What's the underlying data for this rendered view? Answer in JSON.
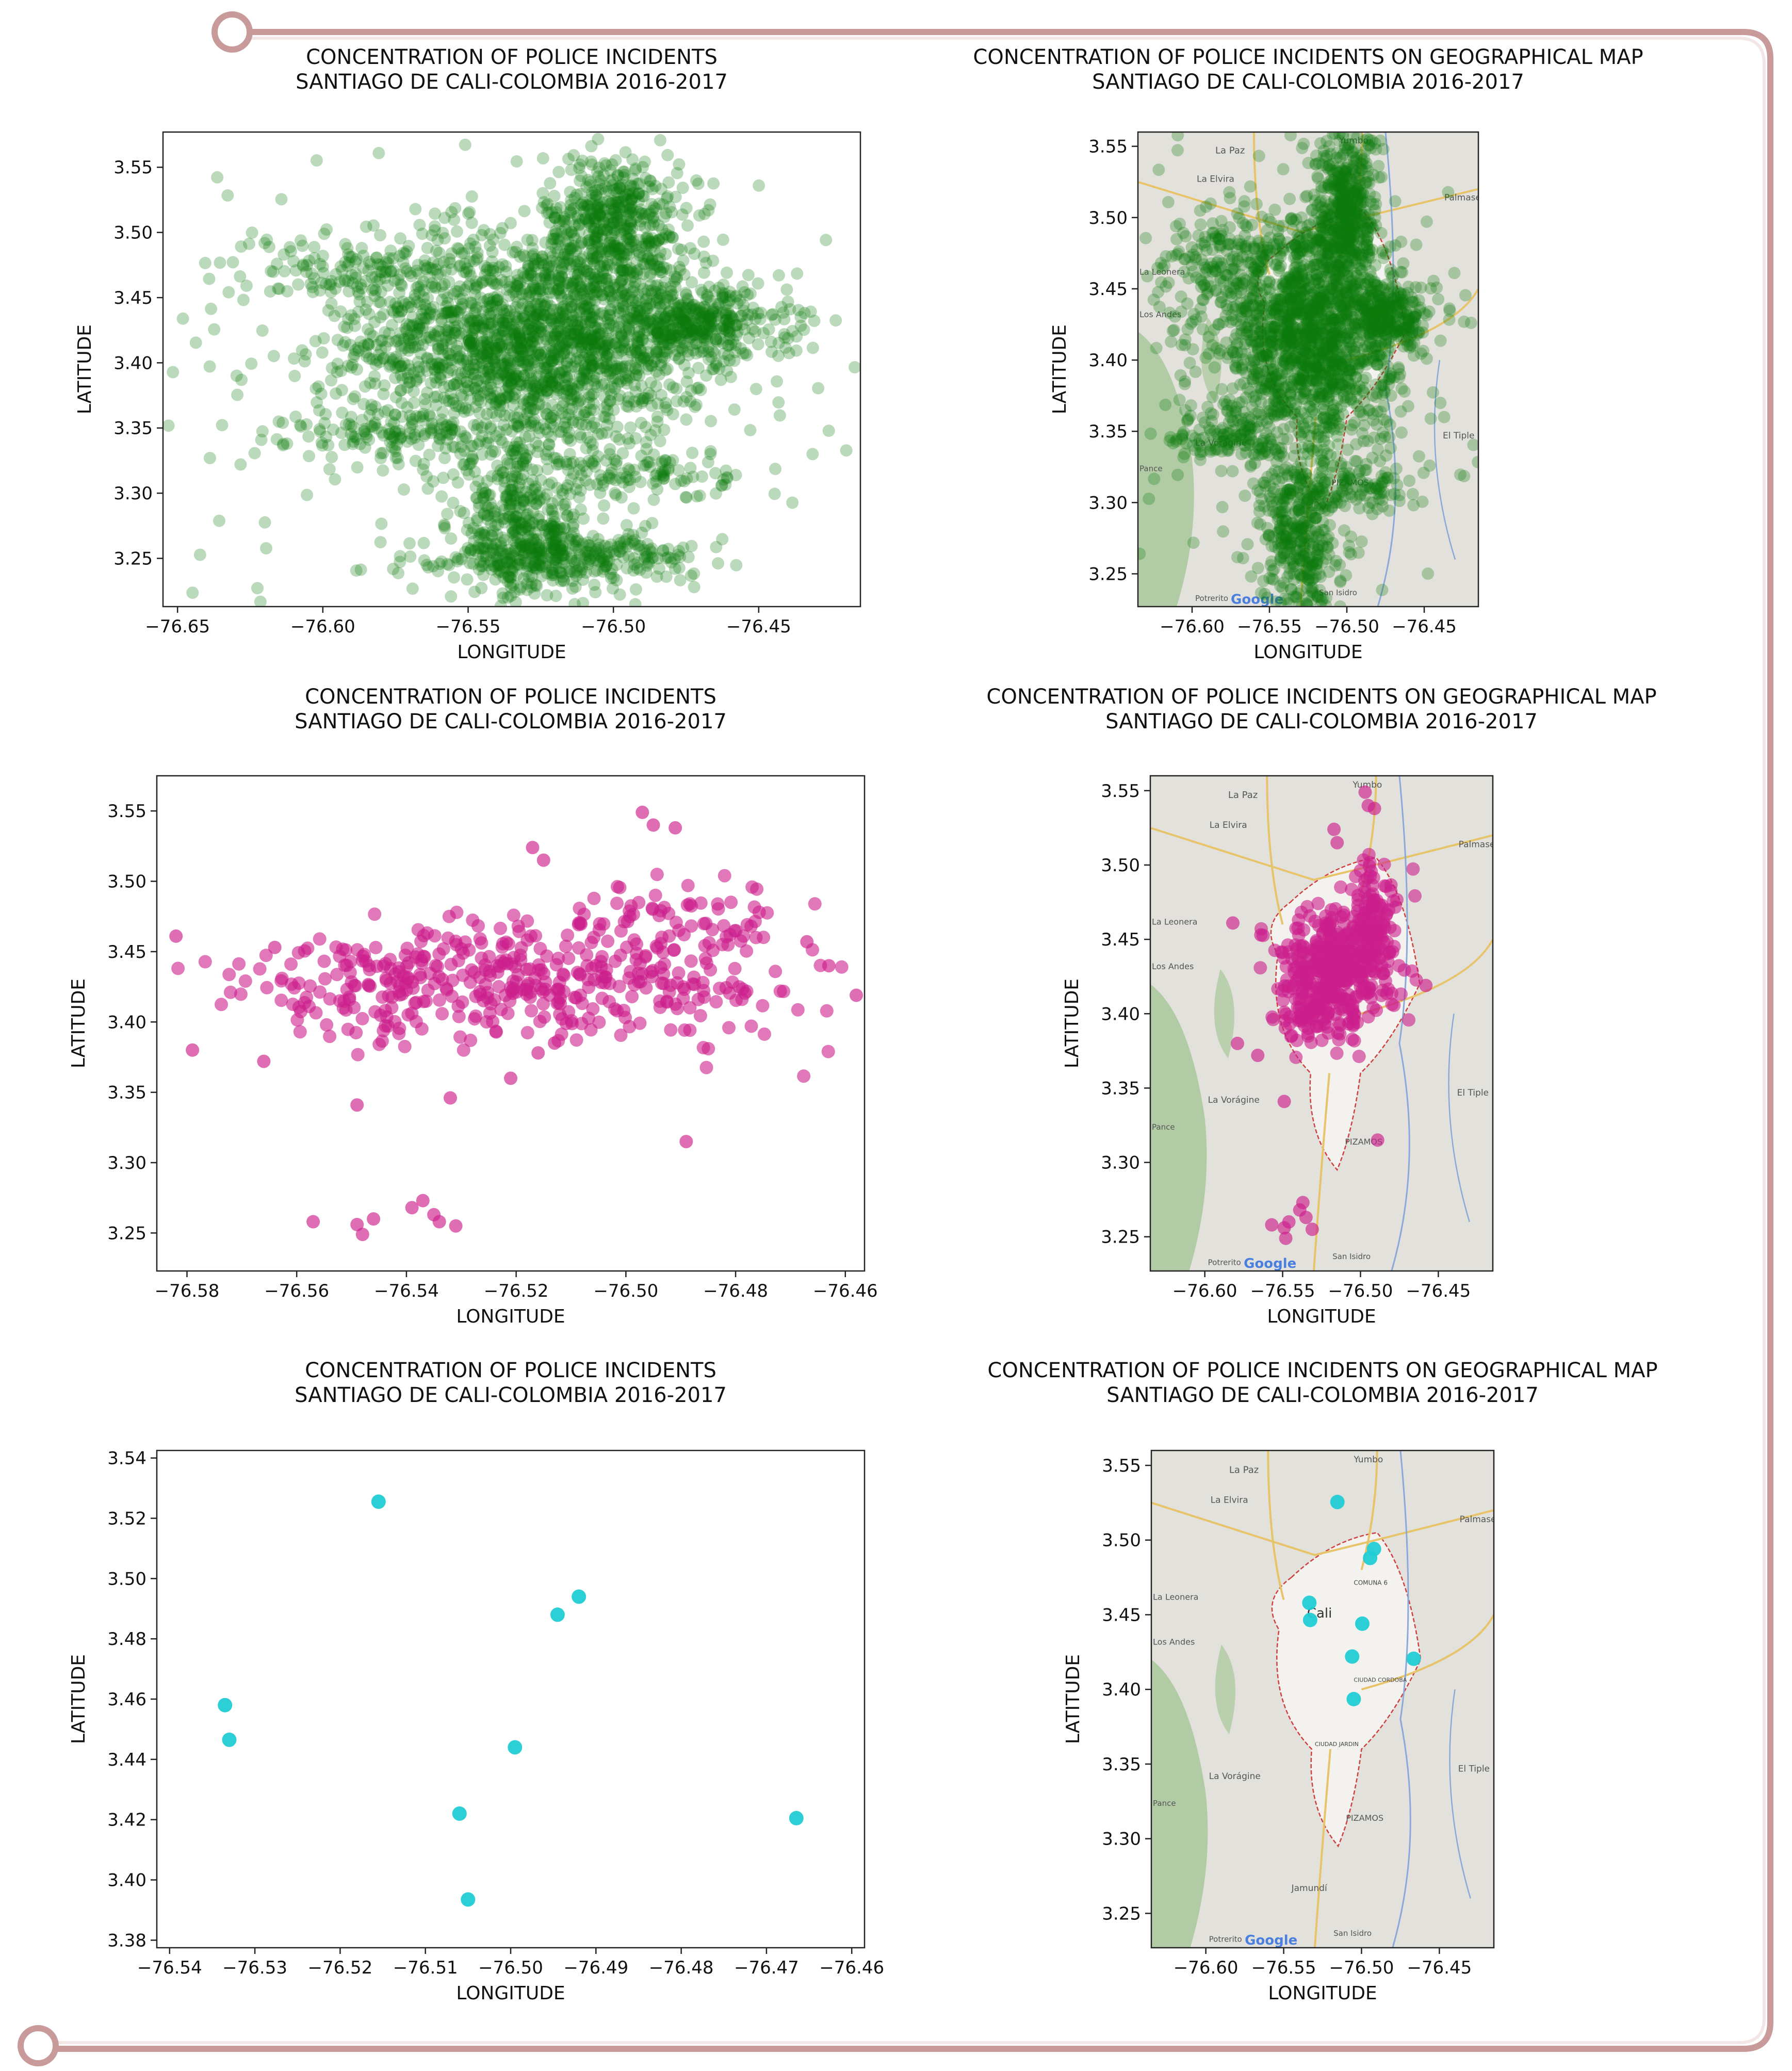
{
  "colors": {
    "frame": "#c89a9a",
    "green": "#0a7a0a",
    "magenta": "#cc1e8c",
    "cyan": "#22ccd4",
    "map_land": "#e3e1dc",
    "map_urban": "#f4f2ee",
    "map_veg": "#a8c89a",
    "map_road": "#e7c46a",
    "map_border": "#d04040",
    "map_water": "#8aa8d8"
  },
  "map_labels": {
    "la_paz": "La Paz",
    "la_elvira": "La Elvira",
    "palmaseca": "Palmaseca",
    "yumbo": "Yumbo",
    "la_leonera": "La Leonera",
    "los_andes": "Los Andes",
    "cali": "Cali",
    "comuna": "COMUNA 6",
    "ciudad": "CIUDAD CORDOBA",
    "ciudad_jardin": "CIUDAD JARDIN",
    "la_voragine": "La Vorágine",
    "el_tiple": "El Tiple",
    "pizamos": "PIZAMOS",
    "jamundi": "Jamundí",
    "potrerito": "Potrerito",
    "san_isidro": "San Isidro",
    "pance": "Pance",
    "google": "Google"
  },
  "chart_data": [
    {
      "id": "green-scatter",
      "type": "scatter",
      "title": "CONCENTRATION OF POLICE INCIDENTS\nSANTIAGO DE CALI-COLOMBIA 2016-2017",
      "xlabel": "LONGITUDE",
      "ylabel": "LATITUDE",
      "xlim": [
        -76.655,
        -76.415
      ],
      "ylim": [
        3.213,
        3.577
      ],
      "xticks": [
        -76.65,
        -76.6,
        -76.55,
        -76.5,
        -76.45
      ],
      "yticks": [
        3.25,
        3.3,
        3.35,
        3.4,
        3.45,
        3.5,
        3.55
      ],
      "color": "#0a7a0a",
      "map": false,
      "density": "high",
      "clusters": [
        {
          "cx": -76.527,
          "cy": 3.415,
          "sx": 0.03,
          "sy": 0.04,
          "n": 1800
        },
        {
          "cx": -76.5,
          "cy": 3.505,
          "sx": 0.012,
          "sy": 0.028,
          "n": 500
        },
        {
          "cx": -76.472,
          "cy": 3.43,
          "sx": 0.016,
          "sy": 0.014,
          "n": 350
        },
        {
          "cx": -76.532,
          "cy": 3.275,
          "sx": 0.012,
          "sy": 0.03,
          "n": 400
        },
        {
          "cx": -76.515,
          "cy": 3.25,
          "sx": 0.022,
          "sy": 0.01,
          "n": 300
        },
        {
          "cx": -76.585,
          "cy": 3.47,
          "sx": 0.022,
          "sy": 0.018,
          "n": 150
        },
        {
          "cx": -76.572,
          "cy": 3.345,
          "sx": 0.02,
          "sy": 0.01,
          "n": 120
        },
        {
          "cx": -76.49,
          "cy": 3.315,
          "sx": 0.015,
          "sy": 0.01,
          "n": 100
        },
        {
          "cx": -76.54,
          "cy": 3.4,
          "sx": 0.08,
          "sy": 0.09,
          "n": 220
        }
      ]
    },
    {
      "id": "green-map",
      "type": "scatter",
      "title": "CONCENTRATION OF POLICE INCIDENTS ON GEOGRAPHICAL MAP\nSANTIAGO DE CALI-COLOMBIA 2016-2017",
      "xlabel": "LONGITUDE",
      "ylabel": "LATITUDE",
      "xlim": [
        -76.635,
        -76.415
      ],
      "ylim": [
        3.227,
        3.56
      ],
      "xticks": [
        -76.6,
        -76.55,
        -76.5,
        -76.45
      ],
      "yticks": [
        3.25,
        3.3,
        3.35,
        3.4,
        3.45,
        3.5,
        3.55
      ],
      "color": "#0a7a0a",
      "map": true,
      "density": "high",
      "clusters": [
        {
          "cx": -76.525,
          "cy": 3.42,
          "sx": 0.028,
          "sy": 0.042,
          "n": 1600
        },
        {
          "cx": -76.5,
          "cy": 3.505,
          "sx": 0.01,
          "sy": 0.028,
          "n": 450
        },
        {
          "cx": -76.472,
          "cy": 3.43,
          "sx": 0.012,
          "sy": 0.012,
          "n": 250
        },
        {
          "cx": -76.53,
          "cy": 3.275,
          "sx": 0.012,
          "sy": 0.03,
          "n": 400
        },
        {
          "cx": -76.585,
          "cy": 3.47,
          "sx": 0.022,
          "sy": 0.018,
          "n": 130
        },
        {
          "cx": -76.575,
          "cy": 3.345,
          "sx": 0.018,
          "sy": 0.01,
          "n": 110
        },
        {
          "cx": -76.49,
          "cy": 3.315,
          "sx": 0.014,
          "sy": 0.01,
          "n": 90
        },
        {
          "cx": -76.54,
          "cy": 3.4,
          "sx": 0.06,
          "sy": 0.08,
          "n": 200
        }
      ]
    },
    {
      "id": "magenta-scatter",
      "type": "scatter",
      "title": "CONCENTRATION OF POLICE INCIDENTS\nSANTIAGO DE CALI-COLOMBIA 2016-2017",
      "xlabel": "LONGITUDE",
      "ylabel": "LATITUDE",
      "xlim": [
        -76.5855,
        -76.4565
      ],
      "ylim": [
        3.223,
        3.575
      ],
      "xticks": [
        -76.58,
        -76.56,
        -76.54,
        -76.52,
        -76.5,
        -76.48,
        -76.46
      ],
      "yticks": [
        3.25,
        3.3,
        3.35,
        3.4,
        3.45,
        3.5,
        3.55
      ],
      "color": "#cc1e8c",
      "map": false,
      "density": "low",
      "clusters": [
        {
          "cx": -76.515,
          "cy": 3.43,
          "sx": 0.025,
          "sy": 0.022,
          "n": 380
        },
        {
          "cx": -76.49,
          "cy": 3.47,
          "sx": 0.01,
          "sy": 0.018,
          "n": 70
        },
        {
          "cx": -76.548,
          "cy": 3.42,
          "sx": 0.01,
          "sy": 0.015,
          "n": 50
        }
      ],
      "points": [
        {
          "x": -76.582,
          "y": 3.461
        },
        {
          "x": -76.579,
          "y": 3.38
        },
        {
          "x": -76.564,
          "y": 3.453
        },
        {
          "x": -76.566,
          "y": 3.372
        },
        {
          "x": -76.497,
          "y": 3.549
        },
        {
          "x": -76.495,
          "y": 3.54
        },
        {
          "x": -76.491,
          "y": 3.538
        },
        {
          "x": -76.517,
          "y": 3.524
        },
        {
          "x": -76.515,
          "y": 3.515
        },
        {
          "x": -76.549,
          "y": 3.341
        },
        {
          "x": -76.532,
          "y": 3.346
        },
        {
          "x": -76.489,
          "y": 3.315
        },
        {
          "x": -76.458,
          "y": 3.419
        },
        {
          "x": -76.463,
          "y": 3.44
        },
        {
          "x": -76.467,
          "y": 3.457
        },
        {
          "x": -76.557,
          "y": 3.258
        },
        {
          "x": -76.549,
          "y": 3.256
        },
        {
          "x": -76.548,
          "y": 3.249
        },
        {
          "x": -76.546,
          "y": 3.26
        },
        {
          "x": -76.539,
          "y": 3.268
        },
        {
          "x": -76.537,
          "y": 3.273
        },
        {
          "x": -76.535,
          "y": 3.263
        },
        {
          "x": -76.534,
          "y": 3.258
        },
        {
          "x": -76.531,
          "y": 3.255
        },
        {
          "x": -76.521,
          "y": 3.36
        },
        {
          "x": -76.516,
          "y": 3.378
        },
        {
          "x": -76.513,
          "y": 3.385
        }
      ]
    },
    {
      "id": "magenta-map",
      "type": "scatter",
      "title": "CONCENTRATION OF POLICE INCIDENTS ON GEOGRAPHICAL MAP\nSANTIAGO DE CALI-COLOMBIA 2016-2017",
      "xlabel": "LONGITUDE",
      "ylabel": "LATITUDE",
      "xlim": [
        -76.635,
        -76.415
      ],
      "ylim": [
        3.227,
        3.56
      ],
      "xticks": [
        -76.6,
        -76.55,
        -76.5,
        -76.45
      ],
      "yticks": [
        3.25,
        3.3,
        3.35,
        3.4,
        3.45,
        3.5,
        3.55
      ],
      "color": "#cc1e8c",
      "map": true,
      "density": "low",
      "clusters": [
        {
          "cx": -76.515,
          "cy": 3.43,
          "sx": 0.018,
          "sy": 0.02,
          "n": 400
        },
        {
          "cx": -76.492,
          "cy": 3.47,
          "sx": 0.008,
          "sy": 0.016,
          "n": 80
        },
        {
          "cx": -76.535,
          "cy": 3.4,
          "sx": 0.01,
          "sy": 0.012,
          "n": 60
        }
      ],
      "points": [
        {
          "x": -76.497,
          "y": 3.549
        },
        {
          "x": -76.495,
          "y": 3.54
        },
        {
          "x": -76.491,
          "y": 3.538
        },
        {
          "x": -76.517,
          "y": 3.524
        },
        {
          "x": -76.515,
          "y": 3.515
        },
        {
          "x": -76.582,
          "y": 3.461
        },
        {
          "x": -76.579,
          "y": 3.38
        },
        {
          "x": -76.549,
          "y": 3.341
        },
        {
          "x": -76.489,
          "y": 3.315
        },
        {
          "x": -76.458,
          "y": 3.419
        },
        {
          "x": -76.557,
          "y": 3.258
        },
        {
          "x": -76.549,
          "y": 3.256
        },
        {
          "x": -76.548,
          "y": 3.249
        },
        {
          "x": -76.546,
          "y": 3.26
        },
        {
          "x": -76.539,
          "y": 3.268
        },
        {
          "x": -76.537,
          "y": 3.273
        },
        {
          "x": -76.535,
          "y": 3.263
        },
        {
          "x": -76.531,
          "y": 3.255
        },
        {
          "x": -76.566,
          "y": 3.372
        },
        {
          "x": -76.564,
          "y": 3.453
        }
      ]
    },
    {
      "id": "cyan-scatter",
      "type": "scatter",
      "title": "CONCENTRATION OF POLICE INCIDENTS\nSANTIAGO DE CALI-COLOMBIA 2016-2017",
      "xlabel": "LONGITUDE",
      "ylabel": "LATITUDE",
      "xlim": [
        -76.5415,
        -76.4585
      ],
      "ylim": [
        3.3775,
        3.5425
      ],
      "xticks": [
        -76.54,
        -76.53,
        -76.52,
        -76.51,
        -76.5,
        -76.49,
        -76.48,
        -76.47,
        -76.46
      ],
      "yticks": [
        3.38,
        3.4,
        3.42,
        3.44,
        3.46,
        3.48,
        3.5,
        3.52,
        3.54
      ],
      "color": "#22ccd4",
      "map": false,
      "density": "sparse",
      "points": [
        {
          "x": -76.5155,
          "y": 3.5255
        },
        {
          "x": -76.492,
          "y": 3.494
        },
        {
          "x": -76.4945,
          "y": 3.488
        },
        {
          "x": -76.5335,
          "y": 3.458
        },
        {
          "x": -76.533,
          "y": 3.4465
        },
        {
          "x": -76.4995,
          "y": 3.444
        },
        {
          "x": -76.506,
          "y": 3.422
        },
        {
          "x": -76.4665,
          "y": 3.4205
        },
        {
          "x": -76.505,
          "y": 3.3935
        }
      ]
    },
    {
      "id": "cyan-map",
      "type": "scatter",
      "title": "CONCENTRATION OF POLICE INCIDENTS ON GEOGRAPHICAL MAP\nSANTIAGO DE CALI-COLOMBIA 2016-2017",
      "xlabel": "LONGITUDE",
      "ylabel": "LATITUDE",
      "xlim": [
        -76.635,
        -76.415
      ],
      "ylim": [
        3.227,
        3.56
      ],
      "xticks": [
        -76.6,
        -76.55,
        -76.5,
        -76.45
      ],
      "yticks": [
        3.25,
        3.3,
        3.35,
        3.4,
        3.45,
        3.5,
        3.55
      ],
      "color": "#22ccd4",
      "map": true,
      "density": "sparse",
      "points": [
        {
          "x": -76.5155,
          "y": 3.5255
        },
        {
          "x": -76.492,
          "y": 3.494
        },
        {
          "x": -76.4945,
          "y": 3.488
        },
        {
          "x": -76.5335,
          "y": 3.458
        },
        {
          "x": -76.533,
          "y": 3.4465
        },
        {
          "x": -76.4995,
          "y": 3.444
        },
        {
          "x": -76.506,
          "y": 3.422
        },
        {
          "x": -76.4665,
          "y": 3.4205
        },
        {
          "x": -76.505,
          "y": 3.3935
        }
      ]
    }
  ]
}
